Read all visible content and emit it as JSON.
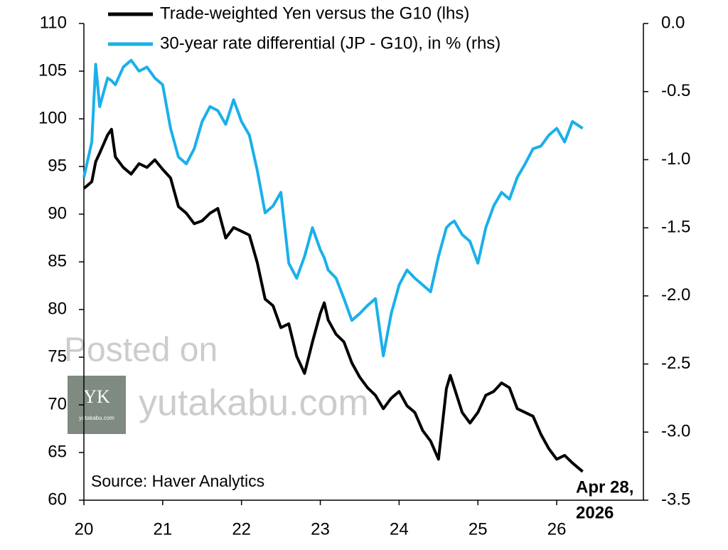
{
  "chart_data": {
    "type": "line",
    "x": [
      20.0,
      20.1,
      20.15,
      20.2,
      20.3,
      20.35,
      20.4,
      20.5,
      20.6,
      20.7,
      20.8,
      20.9,
      21.0,
      21.1,
      21.2,
      21.3,
      21.4,
      21.5,
      21.6,
      21.7,
      21.8,
      21.9,
      22.0,
      22.1,
      22.2,
      22.3,
      22.4,
      22.5,
      22.6,
      22.7,
      22.8,
      22.9,
      23.0,
      23.05,
      23.1,
      23.2,
      23.3,
      23.4,
      23.5,
      23.6,
      23.7,
      23.8,
      23.9,
      24.0,
      24.1,
      24.2,
      24.3,
      24.4,
      24.5,
      24.6,
      24.65,
      24.7,
      24.8,
      24.9,
      25.0,
      25.1,
      25.2,
      25.3,
      25.4,
      25.5,
      25.6,
      25.7,
      25.8,
      25.9,
      26.0,
      26.1,
      26.2,
      26.33
    ],
    "series": [
      {
        "name": "Trade-weighted Yen versus the G10 (lhs)",
        "color": "#000000",
        "values": [
          92.7,
          93.4,
          95.5,
          96.4,
          98.3,
          98.9,
          96.0,
          94.9,
          94.2,
          95.3,
          94.9,
          95.7,
          94.7,
          93.8,
          90.8,
          90.1,
          89.0,
          89.3,
          90.1,
          90.6,
          87.5,
          88.6,
          88.2,
          87.8,
          84.9,
          81.1,
          80.4,
          78.1,
          78.5,
          75.1,
          73.3,
          76.6,
          79.6,
          80.7,
          78.9,
          77.4,
          76.6,
          74.4,
          72.9,
          71.8,
          71.0,
          69.6,
          70.7,
          71.4,
          69.9,
          69.2,
          67.3,
          66.2,
          64.3,
          71.7,
          73.1,
          71.8,
          69.2,
          68.1,
          69.2,
          71.0,
          71.4,
          72.3,
          71.8,
          69.6,
          69.2,
          68.8,
          66.9,
          65.4,
          64.3,
          64.7,
          63.9,
          63.0
        ]
      },
      {
        "name": "30-year rate differential (JP - G10), in % (rhs)",
        "color": "#1ab0ea",
        "axis": "y2",
        "values": [
          -1.13,
          -0.87,
          -0.3,
          -0.61,
          -0.4,
          -0.42,
          -0.45,
          -0.32,
          -0.27,
          -0.35,
          -0.32,
          -0.4,
          -0.45,
          -0.77,
          -0.98,
          -1.03,
          -0.92,
          -0.72,
          -0.61,
          -0.64,
          -0.74,
          -0.56,
          -0.72,
          -0.82,
          -1.08,
          -1.39,
          -1.34,
          -1.24,
          -1.76,
          -1.87,
          -1.71,
          -1.5,
          -1.66,
          -1.72,
          -1.81,
          -1.87,
          -2.02,
          -2.18,
          -2.13,
          -2.07,
          -2.02,
          -2.44,
          -2.13,
          -1.92,
          -1.81,
          -1.87,
          -1.92,
          -1.97,
          -1.71,
          -1.5,
          -1.47,
          -1.45,
          -1.55,
          -1.6,
          -1.76,
          -1.5,
          -1.34,
          -1.24,
          -1.29,
          -1.13,
          -1.03,
          -0.92,
          -0.9,
          -0.82,
          -0.77,
          -0.87,
          -0.72,
          -0.77
        ]
      }
    ],
    "xlim": [
      20,
      27.1
    ],
    "xticks": [
      20,
      21,
      22,
      23,
      24,
      25,
      26
    ],
    "ylim": [
      60,
      110
    ],
    "yticks": [
      60,
      65,
      70,
      75,
      80,
      85,
      90,
      95,
      100,
      105,
      110
    ],
    "y2lim": [
      -3.5,
      0
    ],
    "y2ticks": [
      {
        "value": 0,
        "label": "0.0"
      },
      -0.5,
      {
        "value": -1,
        "label": "-1.0"
      },
      -1.5,
      {
        "value": -2,
        "label": "-2.0"
      },
      -2.5,
      {
        "value": -3,
        "label": "-3.0"
      },
      -3.5
    ],
    "legend": "top",
    "annotations": [
      "Source: Haver Analytics",
      "Apr 28,",
      "2026"
    ]
  },
  "watermark": {
    "line1": "Posted on",
    "line2": "yutakabu.com",
    "logo_text": "YK",
    "logo_caption": "yutakabu.com"
  }
}
